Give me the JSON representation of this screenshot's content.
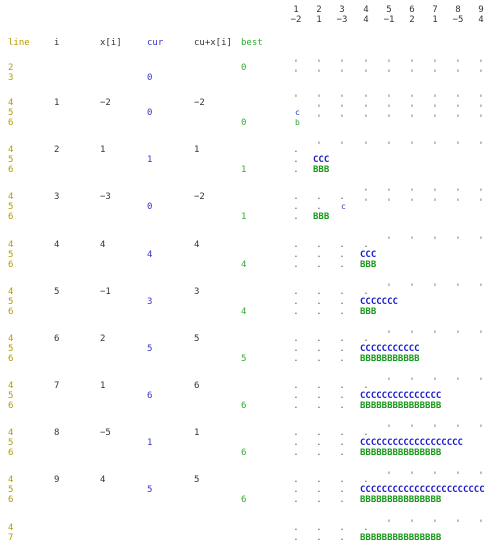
{
  "header": {
    "line_label": "line",
    "i_label": "i",
    "x_label": "x[i]",
    "cur_label": "cur",
    "sum_label": "cu+x[i]",
    "best_label": "best"
  },
  "array": {
    "indices": [
      "1",
      "2",
      "3",
      "4",
      "5",
      "6",
      "7",
      "8",
      "9"
    ],
    "values": [
      "−2",
      "1",
      "−3",
      "4",
      "−1",
      "2",
      "1",
      "−5",
      "4"
    ]
  },
  "rows": [
    {
      "group": [
        {
          "line": "2",
          "best": "0"
        },
        {
          "line": "3",
          "cur": "0"
        }
      ]
    },
    {
      "i": "1",
      "x": "−2",
      "sum": "−2",
      "group": [
        {
          "line": "4"
        },
        {
          "line": "5",
          "cur": "0",
          "mark": "c"
        },
        {
          "line": "6",
          "best": "0",
          "mark": "b"
        }
      ]
    },
    {
      "i": "2",
      "x": "1",
      "sum": "1",
      "group": [
        {
          "line": "4"
        },
        {
          "line": "5",
          "cur": "1",
          "cbar": "CCC"
        },
        {
          "line": "6",
          "best": "1",
          "bbar": "BBB"
        }
      ]
    },
    {
      "i": "3",
      "x": "−3",
      "sum": "−2",
      "group": [
        {
          "line": "4"
        },
        {
          "line": "5",
          "cur": "0",
          "mark": "c"
        },
        {
          "line": "6",
          "best": "1",
          "bbar": "BBB"
        }
      ]
    },
    {
      "i": "4",
      "x": "4",
      "sum": "4",
      "group": [
        {
          "line": "4"
        },
        {
          "line": "5",
          "cur": "4",
          "cbar": "CCC"
        },
        {
          "line": "6",
          "best": "4",
          "bbar": "BBB"
        }
      ]
    },
    {
      "i": "5",
      "x": "−1",
      "sum": "3",
      "group": [
        {
          "line": "4"
        },
        {
          "line": "5",
          "cur": "3",
          "cbar": "CCCCCCC"
        },
        {
          "line": "6",
          "best": "4",
          "bbar": "BBB"
        }
      ]
    },
    {
      "i": "6",
      "x": "2",
      "sum": "5",
      "group": [
        {
          "line": "4"
        },
        {
          "line": "5",
          "cur": "5",
          "cbar": "CCCCCCCCCCC"
        },
        {
          "line": "6",
          "best": "5",
          "bbar": "BBBBBBBBBBB"
        }
      ]
    },
    {
      "i": "7",
      "x": "1",
      "sum": "6",
      "group": [
        {
          "line": "4"
        },
        {
          "line": "5",
          "cur": "6",
          "cbar": "CCCCCCCCCCCCCCC"
        },
        {
          "line": "6",
          "best": "6",
          "bbar": "BBBBBBBBBBBBBBB"
        }
      ]
    },
    {
      "i": "8",
      "x": "−5",
      "sum": "1",
      "group": [
        {
          "line": "4"
        },
        {
          "line": "5",
          "cur": "1",
          "cbar": "CCCCCCCCCCCCCCCCCCC"
        },
        {
          "line": "6",
          "best": "6",
          "bbar": "BBBBBBBBBBBBBBB"
        }
      ]
    },
    {
      "i": "9",
      "x": "4",
      "sum": "5",
      "group": [
        {
          "line": "4"
        },
        {
          "line": "5",
          "cur": "5",
          "cbar": "CCCCCCCCCCCCCCCCCCCCCCC"
        },
        {
          "line": "6",
          "best": "6",
          "bbar": "BBBBBBBBBBBBBBB"
        }
      ]
    },
    {
      "group": [
        {
          "line": "4"
        },
        {
          "line": "7",
          "bbar": "BBBBBBBBBBBBBBB"
        }
      ]
    }
  ]
}
